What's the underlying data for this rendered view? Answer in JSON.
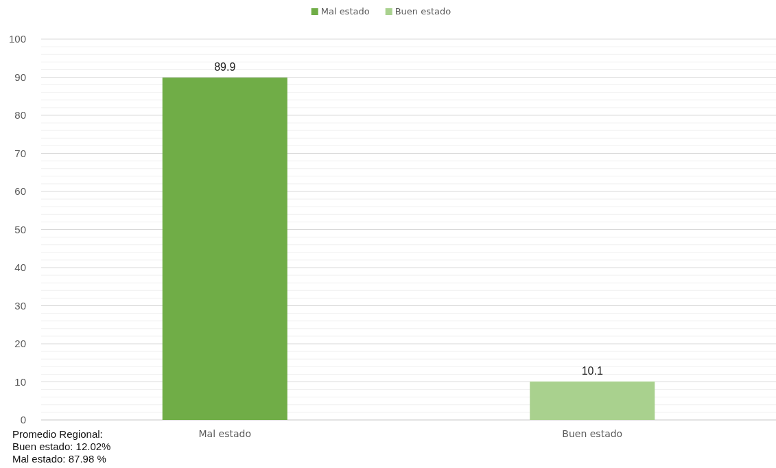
{
  "chart_data": {
    "type": "bar",
    "categories": [
      "Mal estado",
      "Buen estado"
    ],
    "series": [
      {
        "name": "Mal estado",
        "color": "#70ad47",
        "values": [
          89.9,
          null
        ]
      },
      {
        "name": "Buen estado",
        "color": "#a9d18e",
        "values": [
          null,
          10.1
        ]
      }
    ],
    "ylim": [
      0,
      100
    ],
    "yticks": [
      0,
      {
        "value": 2,
        "label": null
      },
      {
        "value": 4,
        "label": null
      },
      {
        "value": 6,
        "label": null
      },
      {
        "value": 8,
        "label": null
      },
      10,
      {
        "value": 12,
        "label": null
      },
      {
        "value": 14,
        "label": null
      },
      {
        "value": 16,
        "label": null
      },
      {
        "value": 18,
        "label": null
      },
      20,
      {
        "value": 22,
        "label": null
      },
      {
        "value": 24,
        "label": null
      },
      {
        "value": 26,
        "label": null
      },
      {
        "value": 28,
        "label": null
      },
      30,
      {
        "value": 32,
        "label": null
      },
      {
        "value": 34,
        "label": null
      },
      {
        "value": 36,
        "label": null
      },
      {
        "value": 38,
        "label": null
      },
      40,
      {
        "value": 42,
        "label": null
      },
      {
        "value": 44,
        "label": null
      },
      {
        "value": 46,
        "label": null
      },
      {
        "value": 48,
        "label": null
      },
      50,
      {
        "value": 52,
        "label": null
      },
      {
        "value": 54,
        "label": null
      },
      {
        "value": 56,
        "label": null
      },
      {
        "value": 58,
        "label": null
      },
      60,
      {
        "value": 62,
        "label": null
      },
      {
        "value": 64,
        "label": null
      },
      {
        "value": 66,
        "label": null
      },
      {
        "value": 68,
        "label": null
      },
      70,
      {
        "value": 72,
        "label": null
      },
      {
        "value": 74,
        "label": null
      },
      {
        "value": 76,
        "label": null
      },
      {
        "value": 78,
        "label": null
      },
      80,
      {
        "value": 82,
        "label": null
      },
      {
        "value": 84,
        "label": null
      },
      {
        "value": 86,
        "label": null
      },
      {
        "value": 88,
        "label": null
      },
      90,
      {
        "value": 92,
        "label": null
      },
      {
        "value": 94,
        "label": null
      },
      {
        "value": 96,
        "label": null
      },
      {
        "value": 98,
        "label": null
      },
      100
    ],
    "grid": "y",
    "legend": "top",
    "data_labels": true,
    "annotations": [
      "Promedio Regional:",
      "Buen estado: 12.02%",
      "Mal estado: 87.98 %"
    ]
  }
}
